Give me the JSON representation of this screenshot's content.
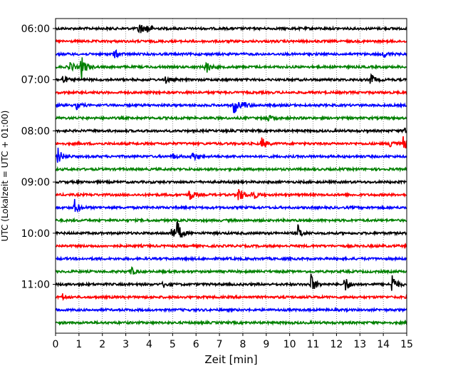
{
  "chart_data": {
    "type": "line",
    "title": "",
    "xlabel": "Zeit  [min]",
    "ylabel": "UTC (Lokalzeit = UTC + 01:00)",
    "xlim": [
      0,
      15
    ],
    "x_ticks": [
      0,
      1,
      2,
      3,
      4,
      5,
      6,
      7,
      8,
      9,
      10,
      11,
      12,
      13,
      14,
      15
    ],
    "y_ticks": [
      "06:00",
      "07:00",
      "08:00",
      "09:00",
      "10:00",
      "11:00"
    ],
    "y_tick_rows": [
      0,
      4,
      8,
      12,
      16,
      20
    ],
    "row_minutes": 15,
    "row_colors": [
      "#000000",
      "#ff0000",
      "#0000ff",
      "#008000"
    ],
    "grid": "vertical dotted",
    "traces": [
      {
        "start": "06:00",
        "color": "#000000",
        "events": [
          {
            "t": 3.55,
            "amp": 0.55
          },
          {
            "t": 3.9,
            "amp": 0.35
          }
        ]
      },
      {
        "start": "06:15",
        "color": "#ff0000",
        "events": []
      },
      {
        "start": "06:30",
        "color": "#0000ff",
        "events": [
          {
            "t": 2.5,
            "amp": 0.35
          },
          {
            "t": 14.0,
            "amp": 0.25
          }
        ]
      },
      {
        "start": "06:45",
        "color": "#008000",
        "events": [
          {
            "t": 0.6,
            "amp": 0.45
          },
          {
            "t": 1.1,
            "amp": 0.9
          },
          {
            "t": 6.4,
            "amp": 0.55
          }
        ]
      },
      {
        "start": "07:00",
        "color": "#000000",
        "events": [
          {
            "t": 0.3,
            "amp": 0.3
          },
          {
            "t": 4.7,
            "amp": 0.25
          },
          {
            "t": 13.45,
            "amp": 0.45
          }
        ]
      },
      {
        "start": "07:15",
        "color": "#ff0000",
        "events": []
      },
      {
        "start": "07:30",
        "color": "#0000ff",
        "events": [
          {
            "t": 0.9,
            "amp": 0.25
          },
          {
            "t": 7.6,
            "amp": 0.75
          },
          {
            "t": 8.0,
            "amp": 0.3
          }
        ]
      },
      {
        "start": "07:45",
        "color": "#008000",
        "events": [
          {
            "t": 9.0,
            "amp": 0.3
          }
        ]
      },
      {
        "start": "08:00",
        "color": "#000000",
        "events": [
          {
            "t": 14.9,
            "amp": 0.35
          }
        ]
      },
      {
        "start": "08:15",
        "color": "#ff0000",
        "events": [
          {
            "t": 8.8,
            "amp": 0.45
          },
          {
            "t": 14.3,
            "amp": 0.4
          },
          {
            "t": 14.85,
            "amp": 0.45
          }
        ]
      },
      {
        "start": "08:30",
        "color": "#0000ff",
        "events": [
          {
            "t": 0.1,
            "amp": 0.6
          },
          {
            "t": 5.8,
            "amp": 0.45
          },
          {
            "t": 5.0,
            "amp": 0.2
          }
        ]
      },
      {
        "start": "08:45",
        "color": "#008000",
        "events": []
      },
      {
        "start": "09:00",
        "color": "#000000",
        "events": []
      },
      {
        "start": "09:15",
        "color": "#ff0000",
        "events": [
          {
            "t": 5.7,
            "amp": 0.5
          },
          {
            "t": 7.8,
            "amp": 0.65
          },
          {
            "t": 8.4,
            "amp": 0.45
          }
        ]
      },
      {
        "start": "09:30",
        "color": "#0000ff",
        "events": [
          {
            "t": 0.8,
            "amp": 0.6
          }
        ]
      },
      {
        "start": "09:45",
        "color": "#008000",
        "events": []
      },
      {
        "start": "10:00",
        "color": "#000000",
        "events": [
          {
            "t": 4.95,
            "amp": 0.55
          },
          {
            "t": 5.2,
            "amp": 0.8
          },
          {
            "t": 10.35,
            "amp": 0.55
          }
        ]
      },
      {
        "start": "10:15",
        "color": "#ff0000",
        "events": []
      },
      {
        "start": "10:30",
        "color": "#0000ff",
        "events": []
      },
      {
        "start": "10:45",
        "color": "#008000",
        "events": [
          {
            "t": 3.2,
            "amp": 0.35
          }
        ]
      },
      {
        "start": "11:00",
        "color": "#000000",
        "events": [
          {
            "t": 4.6,
            "amp": 0.25
          },
          {
            "t": 10.9,
            "amp": 0.8
          },
          {
            "t": 12.35,
            "amp": 0.65
          },
          {
            "t": 14.35,
            "amp": 0.9
          }
        ]
      },
      {
        "start": "11:15",
        "color": "#ff0000",
        "events": [
          {
            "t": 0.3,
            "amp": 0.2
          }
        ]
      },
      {
        "start": "11:30",
        "color": "#0000ff",
        "events": []
      },
      {
        "start": "11:45",
        "color": "#008000",
        "events": []
      }
    ]
  }
}
